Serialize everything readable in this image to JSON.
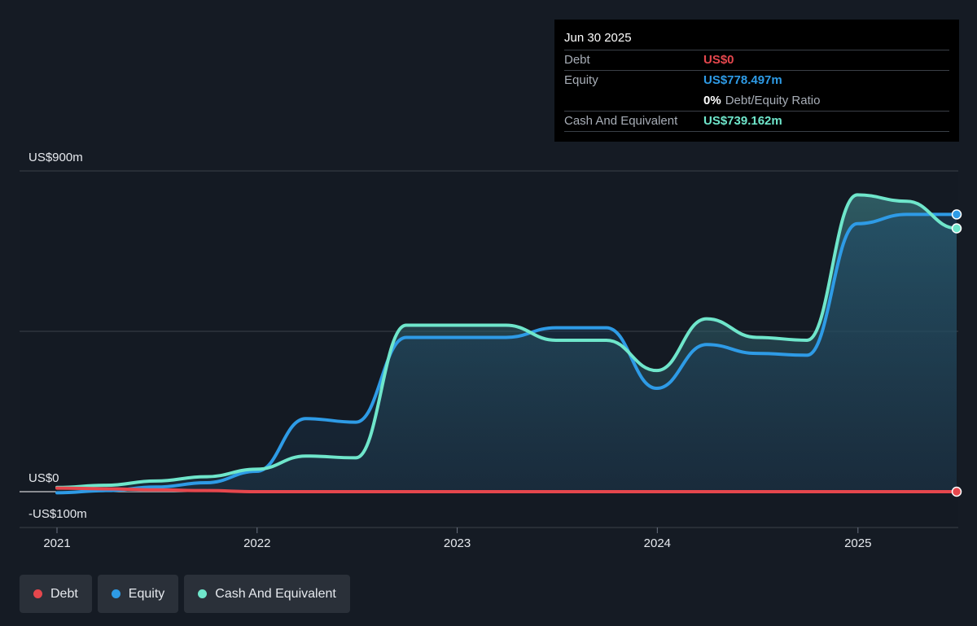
{
  "tooltip": {
    "date": "Jun 30 2025",
    "debt_label": "Debt",
    "debt_value": "US$0",
    "equity_label": "Equity",
    "equity_value": "US$778.497m",
    "ratio_value": "0%",
    "ratio_label": "Debt/Equity Ratio",
    "cash_label": "Cash And Equivalent",
    "cash_value": "US$739.162m"
  },
  "legend": [
    {
      "label": "Debt",
      "color": "#e5474d"
    },
    {
      "label": "Equity",
      "color": "#2e9be6"
    },
    {
      "label": "Cash And Equivalent",
      "color": "#6fe6cb"
    }
  ],
  "colors": {
    "debt": "#e5474d",
    "equity": "#2e9be6",
    "cash": "#6fe6cb",
    "background": "#151b24"
  },
  "chart_data": {
    "type": "area",
    "y_unit": "US$m",
    "ylim": [
      -100,
      900
    ],
    "y_tick_labels": [
      {
        "value": 900,
        "label": "US$900m"
      },
      {
        "value": 0,
        "label": "US$0"
      },
      {
        "value": -100,
        "label": "-US$100m"
      }
    ],
    "x_tick_labels": [
      "2021",
      "2022",
      "2023",
      "2024",
      "2025"
    ],
    "x_range": [
      "2021-01-01",
      "2025-06-30"
    ],
    "grid": "horizontal",
    "series": [
      {
        "name": "Debt",
        "points": [
          [
            "2021-01-01",
            10
          ],
          [
            "2021-03-31",
            8
          ],
          [
            "2021-06-30",
            5
          ],
          [
            "2021-09-30",
            3
          ],
          [
            "2021-12-31",
            0
          ],
          [
            "2025-06-30",
            0
          ]
        ]
      },
      {
        "name": "Equity",
        "points": [
          [
            "2021-01-01",
            -3
          ],
          [
            "2021-03-31",
            3
          ],
          [
            "2021-06-30",
            13
          ],
          [
            "2021-09-30",
            25
          ],
          [
            "2021-12-31",
            57
          ],
          [
            "2022-03-31",
            205
          ],
          [
            "2022-06-30",
            195
          ],
          [
            "2022-09-30",
            433
          ],
          [
            "2022-12-31",
            433
          ],
          [
            "2023-03-31",
            433
          ],
          [
            "2023-06-30",
            460
          ],
          [
            "2023-09-30",
            460
          ],
          [
            "2023-12-31",
            290
          ],
          [
            "2024-03-31",
            413
          ],
          [
            "2024-06-30",
            388
          ],
          [
            "2024-09-30",
            383
          ],
          [
            "2024-12-31",
            752
          ],
          [
            "2025-03-31",
            778
          ],
          [
            "2025-06-30",
            778
          ]
        ]
      },
      {
        "name": "Cash And Equivalent",
        "points": [
          [
            "2021-01-01",
            12
          ],
          [
            "2021-03-31",
            18
          ],
          [
            "2021-06-30",
            30
          ],
          [
            "2021-09-30",
            42
          ],
          [
            "2021-12-31",
            63
          ],
          [
            "2022-03-31",
            100
          ],
          [
            "2022-06-30",
            95
          ],
          [
            "2022-09-30",
            467
          ],
          [
            "2022-12-31",
            467
          ],
          [
            "2023-03-31",
            467
          ],
          [
            "2023-06-30",
            425
          ],
          [
            "2023-09-30",
            425
          ],
          [
            "2023-12-31",
            340
          ],
          [
            "2024-03-31",
            485
          ],
          [
            "2024-06-30",
            433
          ],
          [
            "2024-09-30",
            425
          ],
          [
            "2024-12-31",
            833
          ],
          [
            "2025-03-31",
            815
          ],
          [
            "2025-06-30",
            739
          ]
        ]
      }
    ]
  }
}
